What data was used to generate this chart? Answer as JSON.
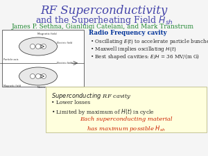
{
  "title_line1": "RF Superconductivity",
  "title_line2": "and the Superheating Field $H_{sh}$",
  "title_color": "#4444aa",
  "authors": "James P. Sethna, Gianluigi Catelani, and Mark Transtrum",
  "authors_color": "#228833",
  "bullet_header": "Radio Frequency cavity",
  "bullet_header_color": "#003399",
  "bullets": [
    "Oscillating $\\mathit{E}(t)$ to accelerate particle bunches",
    "Maxwell implies oscillating $\\mathit{H}(t)$",
    "Best shaped cavities: $\\mathit{E/H}$ = 36 MV/(m G)"
  ],
  "box_header": "$\\mathit{Superconducting}$ RF cavity",
  "box_bullets": [
    "Lower losses",
    "Limited by maximum of $\\mathit{H}(t)$ in cycle"
  ],
  "box_highlight_line1": "Each superconducting material",
  "box_highlight_line2": "has maximum possible $\\mathit{H}_{sh}$",
  "box_highlight_color": "#cc2200",
  "box_bg_color": "#ffffdd",
  "background_color": "#f5f5f5",
  "bullet_text_color": "#222222"
}
